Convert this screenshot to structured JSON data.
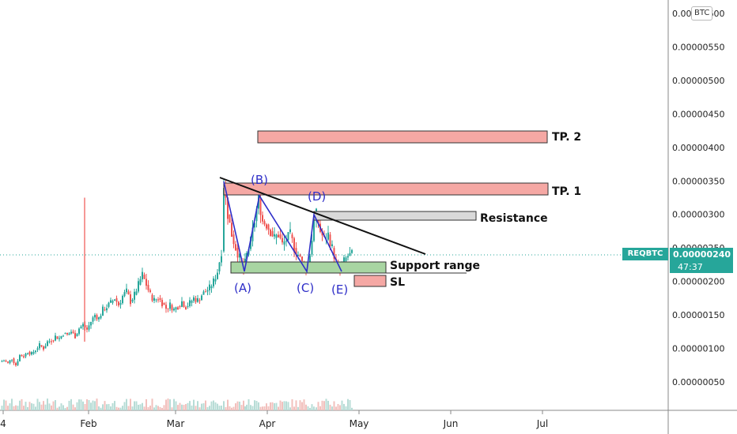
{
  "chart_data": {
    "type": "candlestick",
    "symbol": "REQBTC",
    "last_price": "0.00000240",
    "countdown": "47:37",
    "currency": "BTC",
    "y_ticks": [
      "0.00000600",
      "0.00000550",
      "0.00000500",
      "0.00000450",
      "0.00000400",
      "0.00000350",
      "0.00000300",
      "0.00000250",
      "0.00000200",
      "0.00000150",
      "0.00000100",
      "0.00000050"
    ],
    "x_ticks": [
      "4",
      "Feb",
      "Mar",
      "Apr",
      "May",
      "Jun",
      "Jul"
    ],
    "ylim": [
      0.0,
      6.5e-06
    ],
    "price_series_approx": [
      [
        0,
        8e-07
      ],
      [
        5,
        8.2e-07
      ],
      [
        10,
        7.8e-07
      ],
      [
        15,
        8.5e-07
      ],
      [
        20,
        7.5e-07
      ],
      [
        25,
        9e-07
      ],
      [
        30,
        8.8e-07
      ],
      [
        35,
        9.5e-07
      ],
      [
        40,
        9.2e-07
      ],
      [
        45,
        9.8e-07
      ],
      [
        50,
        1.05e-06
      ],
      [
        55,
        1e-06
      ],
      [
        60,
        1.1e-06
      ],
      [
        65,
        1.12e-06
      ],
      [
        70,
        1.18e-06
      ],
      [
        75,
        1.15e-06
      ],
      [
        80,
        1.22e-06
      ],
      [
        85,
        1.2e-06
      ],
      [
        90,
        1.25e-06
      ],
      [
        95,
        1.18e-06
      ],
      [
        100,
        1.3e-06
      ],
      [
        105,
        1.35e-06
      ],
      [
        110,
        1.28e-06
      ],
      [
        115,
        1.4e-06
      ],
      [
        120,
        1.5e-06
      ],
      [
        125,
        1.45e-06
      ],
      [
        130,
        1.58e-06
      ],
      [
        135,
        1.62e-06
      ],
      [
        140,
        1.68e-06
      ],
      [
        145,
        1.75e-06
      ],
      [
        150,
        1.65e-06
      ],
      [
        155,
        1.78e-06
      ],
      [
        160,
        1.85e-06
      ],
      [
        165,
        1.7e-06
      ],
      [
        170,
        1.8e-06
      ],
      [
        175,
        1.95e-06
      ],
      [
        180,
        2.1e-06
      ],
      [
        185,
        1.95e-06
      ],
      [
        190,
        1.8e-06
      ],
      [
        195,
        1.72e-06
      ],
      [
        200,
        1.75e-06
      ],
      [
        205,
        1.68e-06
      ],
      [
        210,
        1.6e-06
      ],
      [
        215,
        1.65e-06
      ],
      [
        220,
        1.58e-06
      ],
      [
        225,
        1.63e-06
      ],
      [
        230,
        1.7e-06
      ],
      [
        235,
        1.62e-06
      ],
      [
        240,
        1.68e-06
      ],
      [
        245,
        1.75e-06
      ],
      [
        250,
        1.72e-06
      ],
      [
        255,
        1.8e-06
      ],
      [
        260,
        1.85e-06
      ],
      [
        265,
        1.9e-06
      ],
      [
        270,
        2e-06
      ],
      [
        275,
        2.15e-06
      ],
      [
        280,
        2.45e-06
      ],
      [
        283,
        3.45e-06
      ],
      [
        288,
        3e-06
      ],
      [
        293,
        2.7e-06
      ],
      [
        298,
        2.5e-06
      ],
      [
        303,
        2.35e-06
      ],
      [
        308,
        2.15e-06
      ],
      [
        312,
        2.4e-06
      ],
      [
        317,
        2.6e-06
      ],
      [
        322,
        2.9e-06
      ],
      [
        327,
        3.25e-06
      ],
      [
        332,
        2.9e-06
      ],
      [
        337,
        2.85e-06
      ],
      [
        342,
        2.75e-06
      ],
      [
        347,
        2.65e-06
      ],
      [
        352,
        2.7e-06
      ],
      [
        357,
        2.55e-06
      ],
      [
        362,
        2.62e-06
      ],
      [
        367,
        2.7e-06
      ],
      [
        372,
        2.5e-06
      ],
      [
        377,
        2.4e-06
      ],
      [
        382,
        2.28e-06
      ],
      [
        387,
        2.15e-06
      ],
      [
        392,
        2.4e-06
      ],
      [
        397,
        2.9e-06
      ],
      [
        400,
        3e-06
      ],
      [
        405,
        2.75e-06
      ],
      [
        410,
        2.62e-06
      ],
      [
        415,
        2.7e-06
      ],
      [
        420,
        2.5e-06
      ],
      [
        425,
        2.28e-06
      ],
      [
        430,
        2.15e-06
      ],
      [
        435,
        2.3e-06
      ],
      [
        440,
        2.38e-06
      ],
      [
        445,
        2.4e-06
      ]
    ]
  },
  "annotations": {
    "tp2": "TP. 2",
    "tp1": "TP. 1",
    "resistance": "Resistance",
    "support": "Support range",
    "sl": "SL",
    "wave_a": "(A)",
    "wave_b": "(B)",
    "wave_c": "(C)",
    "wave_d": "(D)",
    "wave_e": "(E)"
  },
  "colors": {
    "up": "#26a69a",
    "down": "#ef5350",
    "target_zone": "#f5a8a4",
    "support_zone": "#a8d5a2",
    "resistance_zone": "#d9d9d9",
    "wave_line": "#2f2fc8",
    "trend_line": "#111111",
    "badge": "#26a69a"
  }
}
